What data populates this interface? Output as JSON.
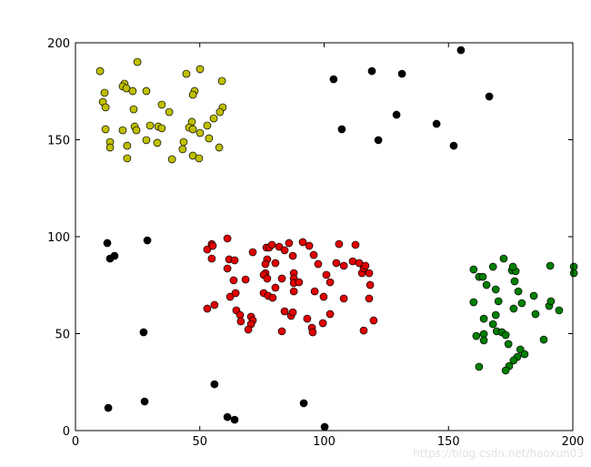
{
  "chart_data": {
    "type": "scatter",
    "xlim": [
      0,
      200
    ],
    "ylim": [
      0,
      200
    ],
    "xticks": [
      0,
      50,
      100,
      150,
      200
    ],
    "yticks": [
      0,
      50,
      100,
      150,
      200
    ],
    "series": [
      {
        "color": "#bfbf00",
        "x": [
          9.9,
          24.9,
          19.7,
          11.7,
          11,
          12.1,
          19,
          20.5,
          23,
          28.5,
          23.4,
          44.6,
          50.1,
          58.9,
          34.7,
          37.7,
          47.9,
          47.2,
          59.2,
          58.1,
          12.1,
          19,
          23.8,
          24.5,
          30,
          33.3,
          34.7,
          46.8,
          45.7,
          53,
          55.6,
          13.9,
          13.9,
          20.8,
          28.5,
          32.9,
          43.5,
          47.2,
          50.1,
          53.7,
          57.8,
          38.8,
          47.2,
          49.7,
          43.1,
          20.8
        ],
        "values": [
          185.4,
          190.1,
          178.9,
          174.2,
          169.5,
          166.7,
          177.5,
          176.5,
          175.1,
          175.1,
          165.7,
          184,
          186.4,
          180.3,
          168.1,
          164.3,
          175.1,
          173.2,
          166.7,
          164.3,
          155.4,
          154.9,
          156.8,
          154.9,
          157.3,
          156.8,
          155.9,
          159.2,
          156.3,
          157.3,
          161,
          148.8,
          146,
          146.9,
          149.8,
          148.4,
          148.8,
          155.4,
          153.5,
          150.7,
          146,
          139.9,
          141.8,
          140.4,
          145.1,
          140.4
        ]
      },
      {
        "color": "#000000",
        "x": [
          103.8,
          119.2,
          131.3,
          155,
          166.4,
          107.1,
          121.8,
          129.1,
          145.2,
          152.1,
          12.8,
          28.9,
          13.9,
          15.7,
          27.4,
          55.9,
          27.8,
          13.2,
          61.1,
          64,
          91.8,
          100.2
        ],
        "values": [
          181.2,
          185.4,
          184,
          196.2,
          172.3,
          155.4,
          149.8,
          162.9,
          158.2,
          146.9,
          96.7,
          98.1,
          88.7,
          90.1,
          50.7,
          23.9,
          15,
          11.7,
          7,
          5.6,
          14.1,
          1.9
        ]
      },
      {
        "color": "#e00000",
        "x": [
          61.1,
          54.8,
          53,
          55.2,
          54.8,
          61.8,
          64,
          61.1,
          53,
          55.9,
          62.2,
          64.4,
          63.6,
          64.7,
          66.2,
          66.5,
          70.6,
          71.3,
          70.6,
          69.5,
          68.4,
          71.3,
          76.8,
          77.9,
          79,
          81.9,
          77.1,
          76.4,
          76.4,
          75.7,
          77.1,
          75.7,
          77.5,
          79.3,
          80.4,
          83,
          80.4,
          85.9,
          84.1,
          87.4,
          91.4,
          94,
          95.8,
          97.6,
          87.8,
          87.8,
          87.8,
          87.8,
          89.9,
          84.1,
          86.7,
          87.4,
          83,
          93.2,
          95.1,
          95.4,
          96.2,
          99.8,
          99.5,
          100.9,
          102.4,
          106,
          104.9,
          107.9,
          111.5,
          112.6,
          114.1,
          115.2,
          115.9,
          116.6,
          118.1,
          118.5,
          118.1,
          107.9,
          102.4,
          115.9,
          119.9
        ],
        "values": [
          99.1,
          96.2,
          93.4,
          95.3,
          88.7,
          88.3,
          87.8,
          83.6,
          62.9,
          64.8,
          69,
          70.9,
          77.5,
          62,
          59.6,
          56.3,
          58.7,
          56.8,
          54.9,
          52.1,
          77.9,
          92,
          94.4,
          94.4,
          95.8,
          94.8,
          88.3,
          85.9,
          81.2,
          80.3,
          78.4,
          70.9,
          69.5,
          68.5,
          73.7,
          78.4,
          86.4,
          96.7,
          93,
          90.1,
          97.2,
          95.3,
          90.6,
          85.9,
          81.2,
          78.4,
          76.1,
          71.8,
          76.5,
          61.5,
          59.2,
          61,
          51.2,
          57.7,
          53,
          50.7,
          71.8,
          69,
          55.4,
          80.3,
          76.5,
          96.2,
          86.4,
          85,
          87.3,
          95.8,
          86.4,
          81.2,
          83.6,
          85,
          81.2,
          75.1,
          68.1,
          68.1,
          60.1,
          51.6,
          56.8
        ]
      },
      {
        "color": "#007f00",
        "x": [
          160.1,
          162.3,
          163.8,
          165.3,
          167.9,
          169,
          172.2,
          175.5,
          177,
          175.9,
          176.6,
          178.1,
          184.3,
          190.9,
          200.4,
          200.4,
          160.1,
          164.2,
          169,
          170.1,
          176.2,
          179.5,
          185,
          190.5,
          191.2,
          194.5,
          161.2,
          164.2,
          164.2,
          167.9,
          169.4,
          171.5,
          173,
          174.1,
          178.9,
          177.7,
          180.6,
          176.2,
          174.4,
          173,
          162.3,
          188.3
        ],
        "values": [
          83.1,
          79.3,
          79.3,
          75.1,
          84.5,
          72.8,
          88.7,
          82.6,
          82.2,
          84.5,
          77,
          71.8,
          69.5,
          85,
          84.5,
          81.2,
          66.2,
          57.7,
          59.6,
          66.7,
          62.9,
          65.7,
          60.1,
          64.3,
          66.7,
          62,
          48.8,
          49.8,
          46.5,
          54.9,
          51.2,
          50.7,
          49.3,
          44.6,
          41.8,
          38,
          39.4,
          36.2,
          33.3,
          31,
          32.9,
          46.9
        ]
      }
    ]
  },
  "watermark": "https://blog.csdn.net/haoxun03"
}
